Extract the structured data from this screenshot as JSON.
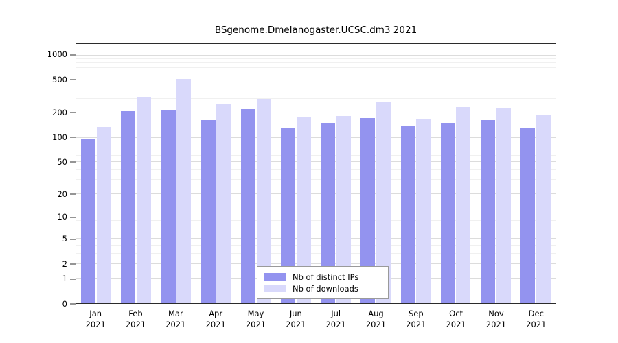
{
  "chart_data": {
    "type": "bar",
    "title": "BSgenome.Dmelanogaster.UCSC.dm3 2021",
    "categories": [
      "Jan",
      "Feb",
      "Mar",
      "Apr",
      "May",
      "Jun",
      "Jul",
      "Aug",
      "Sep",
      "Oct",
      "Nov",
      "Dec"
    ],
    "year": "2021",
    "series": [
      {
        "name": "Nb of distinct IPs",
        "color": "#9393ef",
        "values": [
          95,
          210,
          220,
          165,
          225,
          130,
          150,
          175,
          140,
          150,
          165,
          130
        ]
      },
      {
        "name": "Nb of downloads",
        "color": "#d9d9fb",
        "values": [
          135,
          310,
          520,
          260,
          300,
          180,
          185,
          270,
          170,
          235,
          230,
          190
        ]
      }
    ],
    "yticks": [
      0,
      1,
      2,
      5,
      10,
      20,
      50,
      100,
      200,
      500,
      1000
    ],
    "grid_minor": [
      3,
      4,
      6,
      7,
      8,
      9,
      30,
      40,
      60,
      70,
      80,
      90,
      300,
      400,
      600,
      700,
      800,
      900
    ],
    "scale": "log10(1+x)",
    "axis_decades": 3.14,
    "ylim": [
      0,
      1380
    ],
    "xlabel": "",
    "ylabel": "",
    "grid": true,
    "legend_position": "bottom-center"
  }
}
